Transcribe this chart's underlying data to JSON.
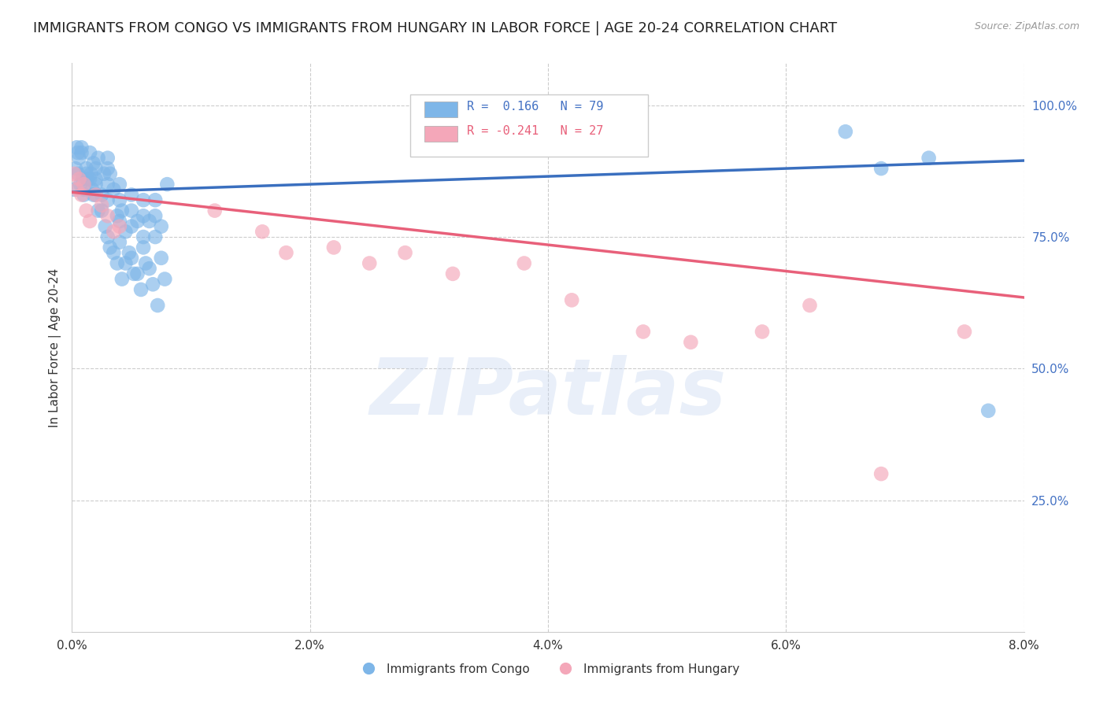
{
  "title": "IMMIGRANTS FROM CONGO VS IMMIGRANTS FROM HUNGARY IN LABOR FORCE | AGE 20-24 CORRELATION CHART",
  "source": "Source: ZipAtlas.com",
  "ylabel": "In Labor Force | Age 20-24",
  "xlim": [
    0.0,
    0.08
  ],
  "ylim": [
    0.0,
    1.08
  ],
  "xtick_labels": [
    "0.0%",
    "2.0%",
    "4.0%",
    "6.0%",
    "8.0%"
  ],
  "xtick_vals": [
    0.0,
    0.02,
    0.04,
    0.06,
    0.08
  ],
  "ytick_labels_right": [
    "25.0%",
    "50.0%",
    "75.0%",
    "100.0%"
  ],
  "ytick_vals_right": [
    0.25,
    0.5,
    0.75,
    1.0
  ],
  "congo_color": "#7EB6E8",
  "hungary_color": "#F4A7B9",
  "congo_line_color": "#3A6FBF",
  "hungary_line_color": "#E8607A",
  "congo_R": 0.166,
  "congo_N": 79,
  "hungary_R": -0.241,
  "hungary_N": 27,
  "legend_label_congo": "Immigrants from Congo",
  "legend_label_hungary": "Immigrants from Hungary",
  "watermark_text": "ZIPatlas",
  "background_color": "#ffffff",
  "grid_color": "#cccccc",
  "title_fontsize": 13,
  "axis_label_fontsize": 11,
  "tick_fontsize": 11,
  "congo_scatter_x": [
    0.0002,
    0.0003,
    0.0004,
    0.0005,
    0.0006,
    0.0007,
    0.0008,
    0.0009,
    0.001,
    0.0012,
    0.0013,
    0.0015,
    0.0016,
    0.0017,
    0.0018,
    0.002,
    0.002,
    0.002,
    0.0022,
    0.0025,
    0.0027,
    0.003,
    0.003,
    0.003,
    0.003,
    0.0032,
    0.0035,
    0.0038,
    0.004,
    0.004,
    0.004,
    0.0042,
    0.0045,
    0.005,
    0.005,
    0.005,
    0.0055,
    0.006,
    0.006,
    0.006,
    0.0065,
    0.007,
    0.007,
    0.0075,
    0.008,
    0.0005,
    0.001,
    0.0015,
    0.002,
    0.0025,
    0.003,
    0.0035,
    0.004,
    0.0045,
    0.005,
    0.0055,
    0.006,
    0.0065,
    0.007,
    0.0075,
    0.0008,
    0.0012,
    0.0018,
    0.0022,
    0.0028,
    0.0032,
    0.0038,
    0.0042,
    0.0048,
    0.0052,
    0.0058,
    0.0062,
    0.0068,
    0.0072,
    0.0078,
    0.065,
    0.068,
    0.072,
    0.077
  ],
  "congo_scatter_y": [
    0.84,
    0.88,
    0.92,
    0.87,
    0.9,
    0.85,
    0.91,
    0.86,
    0.83,
    0.88,
    0.86,
    0.91,
    0.87,
    0.84,
    0.89,
    0.86,
    0.88,
    0.85,
    0.9,
    0.83,
    0.87,
    0.88,
    0.85,
    0.9,
    0.82,
    0.87,
    0.84,
    0.79,
    0.82,
    0.78,
    0.85,
    0.8,
    0.76,
    0.8,
    0.77,
    0.83,
    0.78,
    0.79,
    0.82,
    0.75,
    0.78,
    0.82,
    0.79,
    0.77,
    0.85,
    0.91,
    0.84,
    0.86,
    0.83,
    0.8,
    0.75,
    0.72,
    0.74,
    0.7,
    0.71,
    0.68,
    0.73,
    0.69,
    0.75,
    0.71,
    0.92,
    0.87,
    0.83,
    0.8,
    0.77,
    0.73,
    0.7,
    0.67,
    0.72,
    0.68,
    0.65,
    0.7,
    0.66,
    0.62,
    0.67,
    0.95,
    0.88,
    0.9,
    0.42
  ],
  "hungary_scatter_x": [
    0.0002,
    0.0004,
    0.0006,
    0.0008,
    0.001,
    0.0012,
    0.0015,
    0.002,
    0.0025,
    0.003,
    0.0035,
    0.004,
    0.012,
    0.016,
    0.018,
    0.022,
    0.025,
    0.028,
    0.032,
    0.038,
    0.042,
    0.048,
    0.052,
    0.058,
    0.062,
    0.068,
    0.075
  ],
  "hungary_scatter_y": [
    0.87,
    0.84,
    0.86,
    0.83,
    0.85,
    0.8,
    0.78,
    0.83,
    0.81,
    0.79,
    0.76,
    0.77,
    0.8,
    0.76,
    0.72,
    0.73,
    0.7,
    0.72,
    0.68,
    0.7,
    0.63,
    0.57,
    0.55,
    0.57,
    0.62,
    0.3,
    0.57
  ]
}
